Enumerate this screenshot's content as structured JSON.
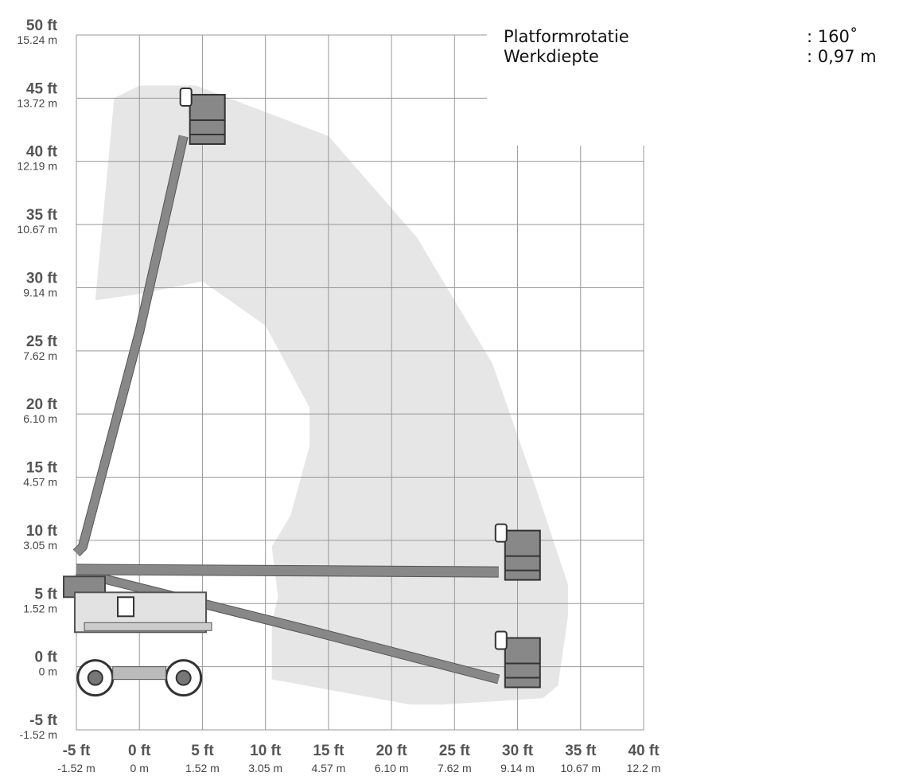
{
  "specs": [
    {
      "label": "Platformrotatie",
      "value": ": 160˚"
    },
    {
      "label": "Werkdiepte",
      "value": ": 0,97 m"
    }
  ],
  "chart_data": {
    "type": "working-range-diagram",
    "x_ticks": [
      {
        "ft": "-5 ft",
        "m": "-1.52 m",
        "value": -5
      },
      {
        "ft": "0 ft",
        "m": "0 m",
        "value": 0
      },
      {
        "ft": "5 ft",
        "m": "1.52 m",
        "value": 5
      },
      {
        "ft": "10 ft",
        "m": "3.05 m",
        "value": 10
      },
      {
        "ft": "15 ft",
        "m": "4.57 m",
        "value": 15
      },
      {
        "ft": "20 ft",
        "m": "6.10 m",
        "value": 20
      },
      {
        "ft": "25 ft",
        "m": "7.62 m",
        "value": 25
      },
      {
        "ft": "30 ft",
        "m": "9.14 m",
        "value": 30
      },
      {
        "ft": "35 ft",
        "m": "10.67 m",
        "value": 35
      },
      {
        "ft": "40 ft",
        "m": "12.2 m",
        "value": 40
      }
    ],
    "y_ticks": [
      {
        "ft": "50 ft",
        "m": "15.24 m",
        "value": 50
      },
      {
        "ft": "45 ft",
        "m": "13.72 m",
        "value": 45
      },
      {
        "ft": "40 ft",
        "m": "12.19 m",
        "value": 40
      },
      {
        "ft": "35 ft",
        "m": "10.67 m",
        "value": 35
      },
      {
        "ft": "30 ft",
        "m": "9.14 m",
        "value": 30
      },
      {
        "ft": "25 ft",
        "m": "7.62 m",
        "value": 25
      },
      {
        "ft": "20 ft",
        "m": "6.10 m",
        "value": 20
      },
      {
        "ft": "15 ft",
        "m": "4.57 m",
        "value": 15
      },
      {
        "ft": "10 ft",
        "m": "3.05 m",
        "value": 10
      },
      {
        "ft": "5 ft",
        "m": "1.52 m",
        "value": 5
      },
      {
        "ft": "0 ft",
        "m": "0 m",
        "value": 0
      },
      {
        "ft": "-5 ft",
        "m": "-1.52 m",
        "value": -5
      }
    ],
    "x_range": [
      -5,
      40
    ],
    "y_range": [
      -5,
      50
    ],
    "grid": true,
    "units": [
      "ft",
      "m"
    ],
    "envelope_ft": [
      [
        -3.5,
        29
      ],
      [
        -2,
        45
      ],
      [
        0,
        46
      ],
      [
        4.5,
        46
      ],
      [
        15,
        42
      ],
      [
        22,
        34
      ],
      [
        28,
        24
      ],
      [
        31.5,
        14
      ],
      [
        34,
        6.5
      ],
      [
        34,
        4
      ],
      [
        33.2,
        -1.5
      ],
      [
        32,
        -2.5
      ],
      [
        24,
        -3
      ],
      [
        21.5,
        -3
      ],
      [
        10.5,
        -1
      ],
      [
        10.5,
        3.5
      ],
      [
        11,
        5.5
      ],
      [
        10.5,
        9.5
      ],
      [
        12,
        12
      ],
      [
        13.5,
        17.5
      ],
      [
        13.5,
        20.5
      ],
      [
        10,
        27
      ],
      [
        5,
        30.5
      ],
      [
        0,
        29.5
      ]
    ],
    "boom_positions_ft": {
      "max_height": [
        [
          -5,
          9
        ],
        [
          -4.5,
          9.5
        ],
        [
          0,
          26.5
        ],
        [
          3.5,
          42
        ]
      ],
      "horizontal": [
        [
          -5,
          7.7
        ],
        [
          28.5,
          7.5
        ]
      ],
      "below_horizontal": [
        [
          -5,
          7.5
        ],
        [
          13,
          3
        ],
        [
          28.5,
          -1
        ]
      ]
    },
    "colors": {
      "envelope": "#e6e6e6",
      "grid": "#999999",
      "boom": "#888888",
      "boom_stroke": "#555555",
      "platform": "#888888"
    }
  }
}
